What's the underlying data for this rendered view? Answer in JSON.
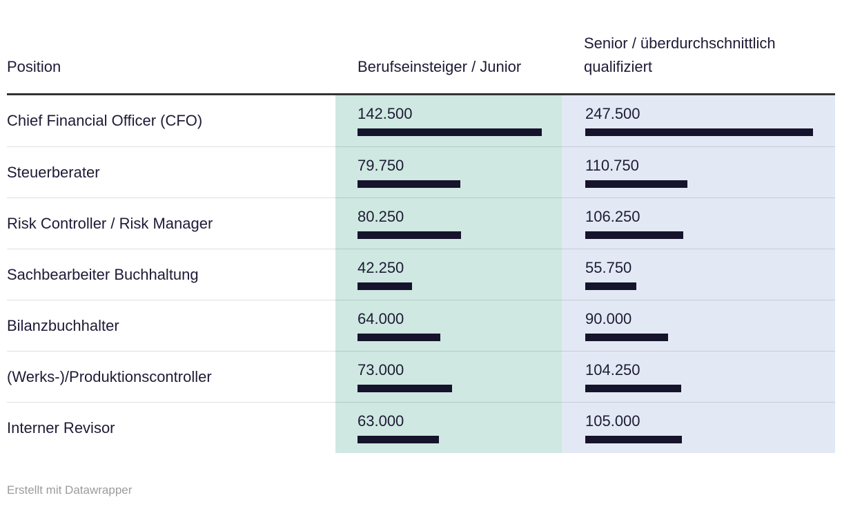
{
  "header": {
    "columns": [
      {
        "label": "Position"
      },
      {
        "label": "Berufseinsteiger / Junior"
      },
      {
        "label": "Senior / überdurchschnittlich qualifiziert"
      }
    ]
  },
  "chart_data": {
    "type": "table",
    "columns": [
      "Position",
      "Berufseinsteiger / Junior",
      "Senior / überdurchschnittlich qualifiziert"
    ],
    "bar_scale": "each value column scaled to its own maximum",
    "junior_max": 142500,
    "senior_max": 247500,
    "rows": [
      {
        "position": "Chief Financial Officer (CFO)",
        "junior": 142500,
        "junior_label": "142.500",
        "senior": 247500,
        "senior_label": "247.500"
      },
      {
        "position": "Steuerberater",
        "junior": 79750,
        "junior_label": "79.750",
        "senior": 110750,
        "senior_label": "110.750"
      },
      {
        "position": "Risk Controller / Risk Manager",
        "junior": 80250,
        "junior_label": "80.250",
        "senior": 106250,
        "senior_label": "106.250"
      },
      {
        "position": "Sachbearbeiter Buchhaltung",
        "junior": 42250,
        "junior_label": "42.250",
        "senior": 55750,
        "senior_label": "55.750"
      },
      {
        "position": "Bilanzbuchhalter",
        "junior": 64000,
        "junior_label": "64.000",
        "senior": 90000,
        "senior_label": "90.000"
      },
      {
        "position": "(Werks-)/Produktionscontroller",
        "junior": 73000,
        "junior_label": "73.000",
        "senior": 104250,
        "senior_label": "104.250"
      },
      {
        "position": "Interner Revisor",
        "junior": 63000,
        "junior_label": "63.000",
        "senior": 105000,
        "senior_label": "105.000"
      }
    ]
  },
  "colors": {
    "junior_bg": "#cfe8e1",
    "senior_bg": "#e3e9f4",
    "bar": "#16132c",
    "text": "#1d1b35",
    "header_rule": "#333333",
    "separator": "rgba(0,0,0,0.12)",
    "footer_text": "#9b9b9b"
  },
  "footer": {
    "text": "Erstellt mit Datawrapper"
  }
}
